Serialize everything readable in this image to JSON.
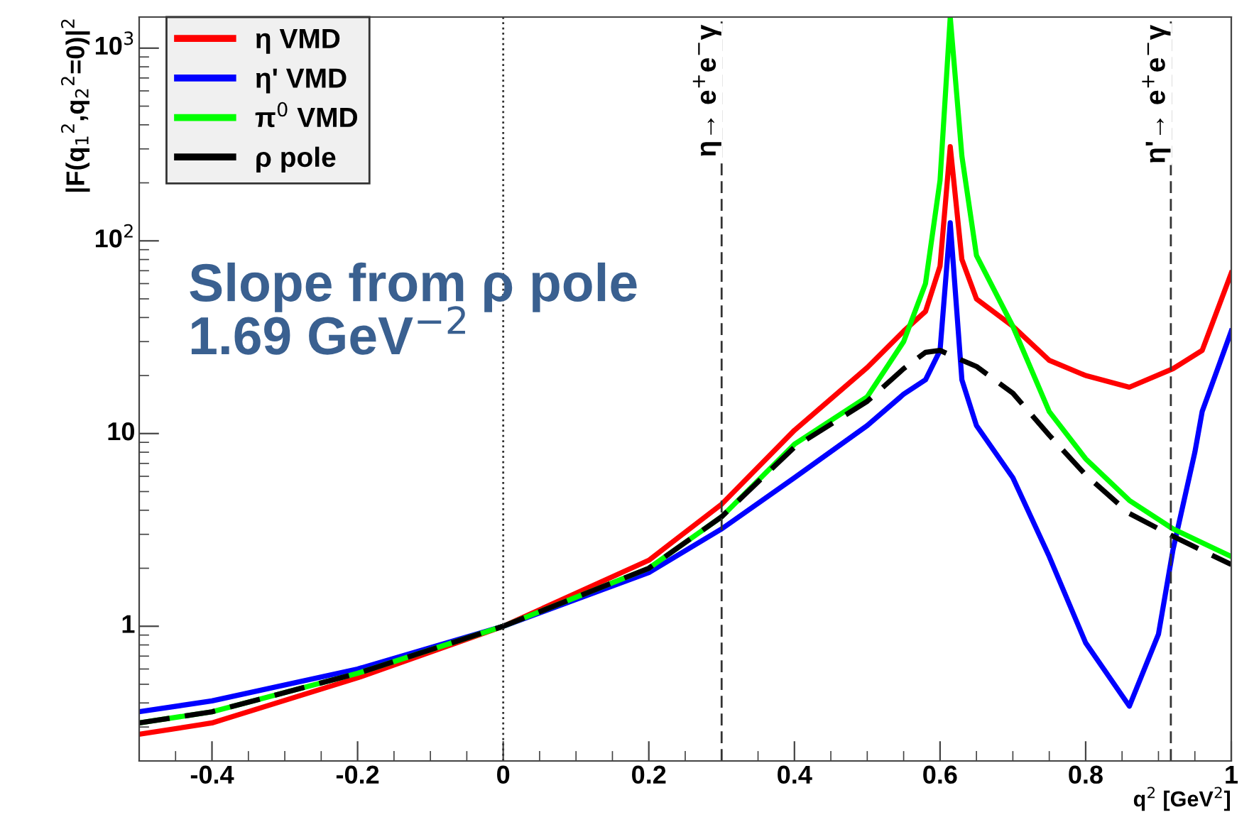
{
  "chart_data": {
    "type": "line",
    "xlabel": "q$^{2}$ [GeV$^{2}$]",
    "ylabel": "|F(q$_{1}$$^{2}$,q$_{2}$$^{2}$=0)|$^{2}$",
    "log": "y",
    "xlim": [
      -0.5,
      1.0
    ],
    "xticks": [
      -0.4,
      -0.2,
      0,
      0.2,
      0.4,
      0.6,
      0.8,
      1
    ],
    "ylim": [
      0.2,
      1450
    ],
    "yticks": [
      1,
      10,
      {
        "value": 100,
        "label": "10$^{2}$"
      },
      {
        "value": 1000,
        "label": "10$^{3}$"
      }
    ],
    "grid": false,
    "legend": "top left",
    "marker": "none",
    "series": [
      {
        "name": "η VMD",
        "color": "#ff0000",
        "line_style": "solid",
        "x": [
          -0.5,
          -0.4,
          -0.2,
          0,
          0.2,
          0.3,
          0.4,
          0.5,
          0.55,
          0.58,
          0.6,
          0.614,
          0.63,
          0.65,
          0.7,
          0.75,
          0.8,
          0.86,
          0.92,
          0.96,
          1.0
        ],
        "values": [
          0.275,
          0.315,
          0.54,
          1,
          2.2,
          4.3,
          10.4,
          22,
          34,
          43,
          74,
          308,
          80,
          50,
          36,
          24,
          20,
          17.4,
          21.7,
          27,
          68
        ]
      },
      {
        "name": "η' VMD",
        "color": "#0000ff",
        "line_style": "solid",
        "x": [
          -0.5,
          -0.4,
          -0.2,
          0,
          0.2,
          0.3,
          0.4,
          0.5,
          0.55,
          0.58,
          0.6,
          0.614,
          0.63,
          0.65,
          0.7,
          0.75,
          0.8,
          0.86,
          0.9,
          0.92,
          0.95,
          0.96,
          1.0
        ],
        "values": [
          0.36,
          0.41,
          0.6,
          1,
          1.9,
          3.2,
          5.9,
          11,
          16,
          19,
          27,
          124,
          19,
          11,
          5.9,
          2.3,
          0.82,
          0.385,
          0.91,
          2.5,
          8,
          13,
          34
        ]
      },
      {
        "name": "π$^{0}$ VMD",
        "color": "#00ff00",
        "line_style": "solid",
        "x": [
          -0.5,
          -0.4,
          -0.2,
          0,
          0.2,
          0.3,
          0.4,
          0.5,
          0.55,
          0.58,
          0.6,
          0.614,
          0.63,
          0.65,
          0.7,
          0.75,
          0.8,
          0.86,
          0.92,
          1.0
        ],
        "values": [
          0.315,
          0.36,
          0.57,
          1,
          2.0,
          3.7,
          8.8,
          15.5,
          30,
          60,
          206,
          1450,
          275,
          84,
          36,
          13,
          7.4,
          4.5,
          3.2,
          2.3
        ]
      },
      {
        "name": "ρ pole",
        "color": "#000000",
        "line_style": "dashed",
        "x": [
          -0.5,
          -0.4,
          -0.2,
          0,
          0.2,
          0.3,
          0.4,
          0.5,
          0.55,
          0.58,
          0.6,
          0.63,
          0.65,
          0.7,
          0.75,
          0.8,
          0.86,
          0.92,
          1.0
        ],
        "values": [
          0.315,
          0.36,
          0.57,
          1,
          2.0,
          3.7,
          8.5,
          14.7,
          21.7,
          26.4,
          27,
          24,
          22.3,
          16.2,
          9.8,
          6.1,
          3.85,
          2.93,
          2.09
        ]
      }
    ],
    "ref_lines": [
      {
        "axis": "x",
        "value": 0,
        "label": null,
        "color": "#333333",
        "line_style": "dotted"
      },
      {
        "axis": "x",
        "value": 0.3,
        "label": "η→ e$^{+}$e$^{−}$γ",
        "color": "#333333",
        "line_style": "dashed"
      },
      {
        "axis": "x",
        "value": 0.917,
        "label": "η'→ e$^{+}$e$^{−}$γ",
        "color": "#333333",
        "line_style": "dashed"
      }
    ],
    "annotations": [
      "Slope from ρ pole\n1.69 GeV$^{−2}$"
    ]
  }
}
